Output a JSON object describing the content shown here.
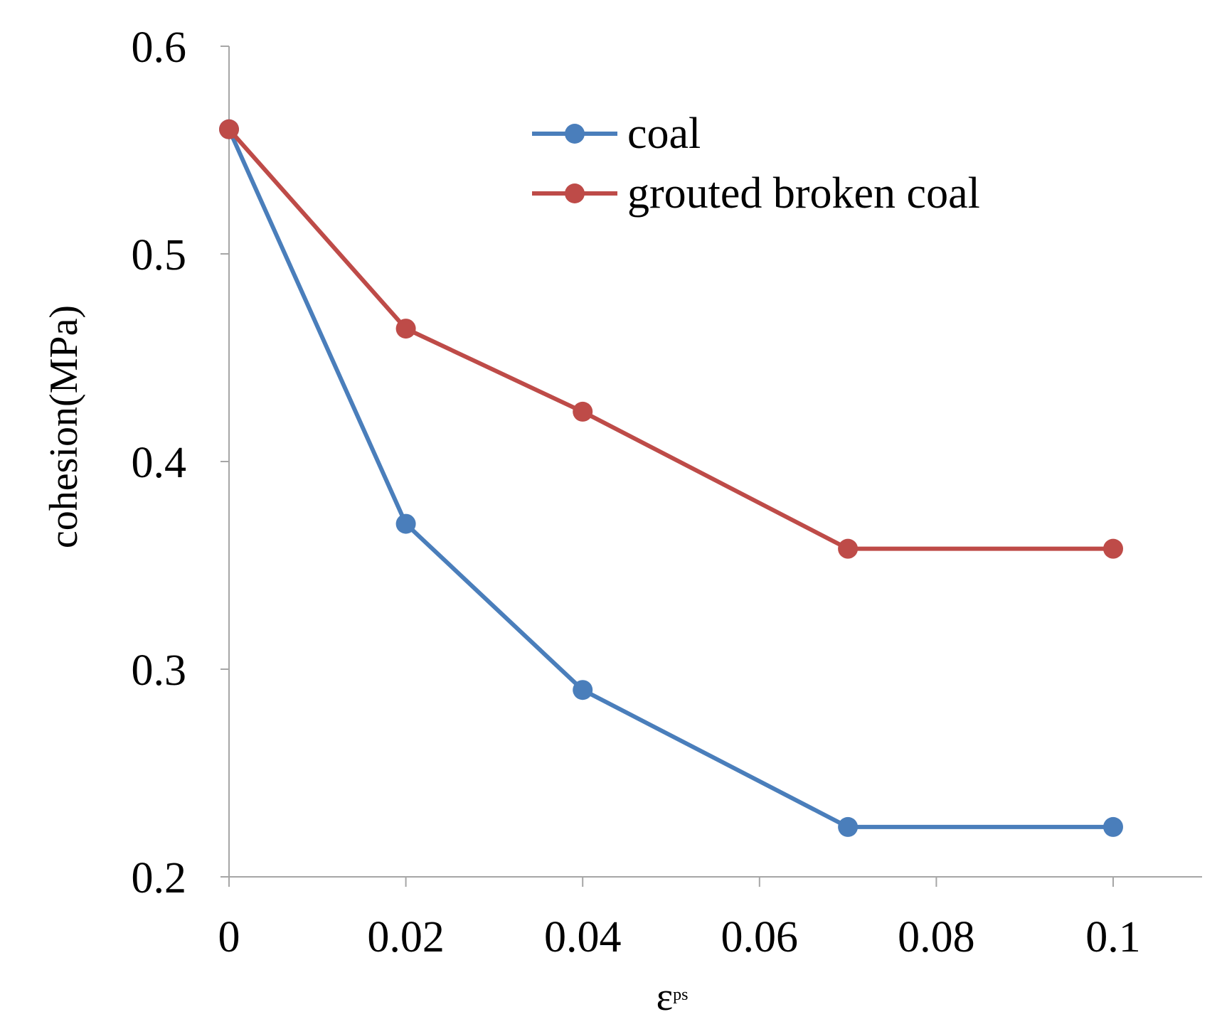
{
  "chart_data": {
    "type": "line",
    "title": "",
    "xlabel": "εps",
    "xlabel_base": "ε",
    "xlabel_sup": "ps",
    "ylabel": "cohesion(MPa)",
    "xlim": [
      0,
      0.11
    ],
    "ylim": [
      0.2,
      0.6
    ],
    "xticks": [
      0,
      0.02,
      0.04,
      0.06,
      0.08,
      0.1
    ],
    "xtick_labels": [
      "0",
      "0.02",
      "0.04",
      "0.06",
      "0.08",
      "0.1"
    ],
    "yticks": [
      0.2,
      0.3,
      0.4,
      0.5,
      0.6
    ],
    "ytick_labels": [
      "0.2",
      "0.3",
      "0.4",
      "0.5",
      "0.6"
    ],
    "grid": false,
    "legend_position": "top-right",
    "series": [
      {
        "name": "coal",
        "color": "#4a7ebb",
        "x": [
          0,
          0.02,
          0.04,
          0.07,
          0.1
        ],
        "values": [
          0.56,
          0.37,
          0.29,
          0.224,
          0.224
        ]
      },
      {
        "name": "grouted broken coal",
        "color": "#be4b48",
        "x": [
          0,
          0.02,
          0.04,
          0.07,
          0.1
        ],
        "values": [
          0.56,
          0.464,
          0.424,
          0.358,
          0.358
        ]
      }
    ]
  }
}
